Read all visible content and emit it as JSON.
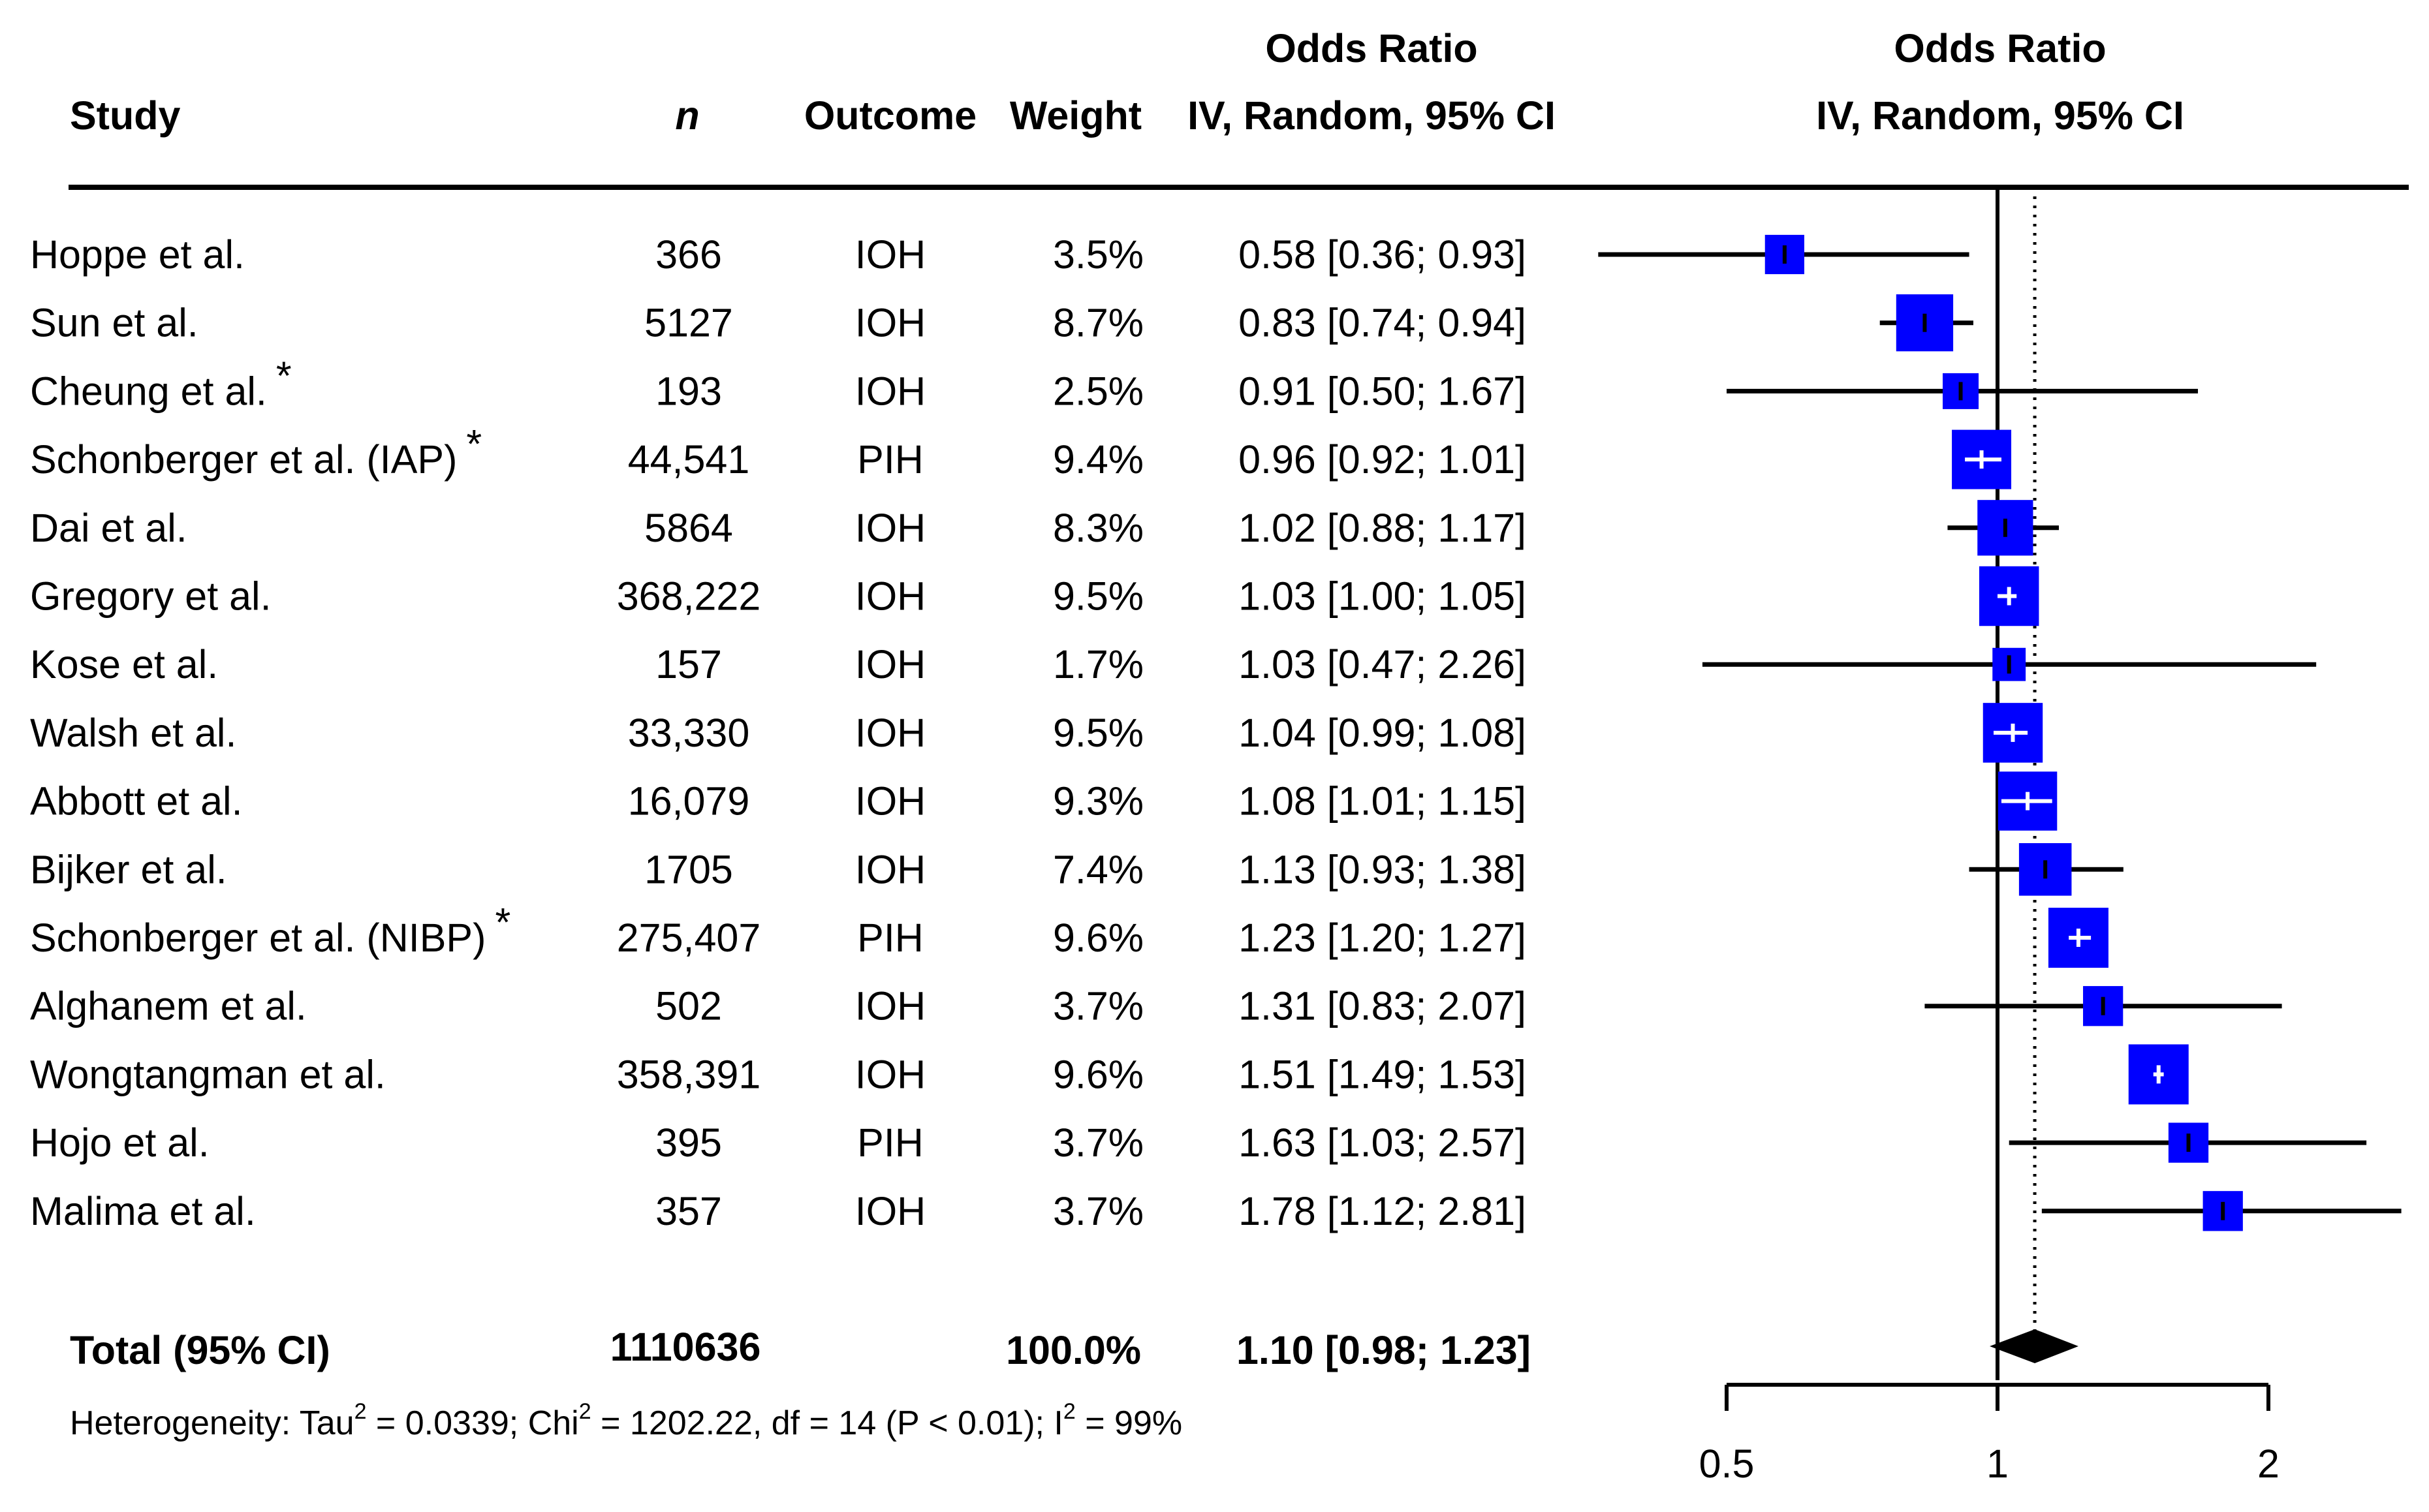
{
  "chart_data": {
    "type": "forest",
    "columns": {
      "study": "Study",
      "n": "n",
      "outcome": "Outcome",
      "weight": "Weight",
      "or_header_line1": "Odds Ratio",
      "or_header_line2": "IV, Random, 95% CI",
      "plot_header_line1": "Odds Ratio",
      "plot_header_line2": "IV, Random, 95% CI"
    },
    "studies": [
      {
        "study": "Hoppe et al.",
        "star": "",
        "n": "366",
        "outcome": "IOH",
        "weight": "3.5%",
        "weight_value": 3.5,
        "ci_text": "0.58 [0.36; 0.93]",
        "or": 0.58,
        "lower": 0.36,
        "upper": 0.93
      },
      {
        "study": "Sun et al.",
        "star": "",
        "n": "5127",
        "outcome": "IOH",
        "weight": "8.7%",
        "weight_value": 8.7,
        "ci_text": "0.83 [0.74; 0.94]",
        "or": 0.83,
        "lower": 0.74,
        "upper": 0.94
      },
      {
        "study": "Cheung et al.",
        "star": "*",
        "n": "193",
        "outcome": "IOH",
        "weight": "2.5%",
        "weight_value": 2.5,
        "ci_text": "0.91 [0.50; 1.67]",
        "or": 0.91,
        "lower": 0.5,
        "upper": 1.67
      },
      {
        "study": "Schonberger et al. (IAP)",
        "star": "*",
        "n": "44,541",
        "outcome": "PIH",
        "weight": "9.4%",
        "weight_value": 9.4,
        "ci_text": "0.96 [0.92; 1.01]",
        "or": 0.96,
        "lower": 0.92,
        "upper": 1.01
      },
      {
        "study": "Dai et al.",
        "star": "",
        "n": "5864",
        "outcome": "IOH",
        "weight": "8.3%",
        "weight_value": 8.3,
        "ci_text": "1.02 [0.88; 1.17]",
        "or": 1.02,
        "lower": 0.88,
        "upper": 1.17
      },
      {
        "study": "Gregory et al.",
        "star": "",
        "n": "368,222",
        "outcome": "IOH",
        "weight": "9.5%",
        "weight_value": 9.5,
        "ci_text": "1.03 [1.00; 1.05]",
        "or": 1.03,
        "lower": 1.0,
        "upper": 1.05
      },
      {
        "study": "Kose et al.",
        "star": "",
        "n": "157",
        "outcome": "IOH",
        "weight": "1.7%",
        "weight_value": 1.7,
        "ci_text": "1.03 [0.47; 2.26]",
        "or": 1.03,
        "lower": 0.47,
        "upper": 2.26
      },
      {
        "study": "Walsh et al.",
        "star": "",
        "n": "33,330",
        "outcome": "IOH",
        "weight": "9.5%",
        "weight_value": 9.5,
        "ci_text": "1.04 [0.99; 1.08]",
        "or": 1.04,
        "lower": 0.99,
        "upper": 1.08
      },
      {
        "study": "Abbott et al.",
        "star": "",
        "n": "16,079",
        "outcome": "IOH",
        "weight": "9.3%",
        "weight_value": 9.3,
        "ci_text": "1.08 [1.01; 1.15]",
        "or": 1.08,
        "lower": 1.01,
        "upper": 1.15
      },
      {
        "study": "Bijker et al.",
        "star": "",
        "n": "1705",
        "outcome": "IOH",
        "weight": "7.4%",
        "weight_value": 7.4,
        "ci_text": "1.13 [0.93; 1.38]",
        "or": 1.13,
        "lower": 0.93,
        "upper": 1.38
      },
      {
        "study": "Schonberger et al. (NIBP)",
        "star": "*",
        "n": "275,407",
        "outcome": "PIH",
        "weight": "9.6%",
        "weight_value": 9.6,
        "ci_text": "1.23 [1.20; 1.27]",
        "or": 1.23,
        "lower": 1.2,
        "upper": 1.27
      },
      {
        "study": "Alghanem et al.",
        "star": "",
        "n": "502",
        "outcome": "IOH",
        "weight": "3.7%",
        "weight_value": 3.7,
        "ci_text": "1.31 [0.83; 2.07]",
        "or": 1.31,
        "lower": 0.83,
        "upper": 2.07
      },
      {
        "study": "Wongtangman et al.",
        "star": "",
        "n": "358,391",
        "outcome": "IOH",
        "weight": "9.6%",
        "weight_value": 9.6,
        "ci_text": "1.51 [1.49; 1.53]",
        "or": 1.51,
        "lower": 1.49,
        "upper": 1.53
      },
      {
        "study": "Hojo et al.",
        "star": "",
        "n": "395",
        "outcome": "PIH",
        "weight": "3.7%",
        "weight_value": 3.7,
        "ci_text": "1.63 [1.03; 2.57]",
        "or": 1.63,
        "lower": 1.03,
        "upper": 2.57
      },
      {
        "study": "Malima et al.",
        "star": "",
        "n": "357",
        "outcome": "IOH",
        "weight": "3.7%",
        "weight_value": 3.7,
        "ci_text": "1.78 [1.12; 2.81]",
        "or": 1.78,
        "lower": 1.12,
        "upper": 2.81
      }
    ],
    "total": {
      "label": "Total (95% CI)",
      "n": "1110636",
      "weight": "100.0%",
      "ci_text": "1.10 [0.98; 1.23]",
      "or": 1.1,
      "lower": 0.98,
      "upper": 1.23
    },
    "heterogeneity": {
      "prefix": "Heterogeneity: Tau",
      "tau2": " = 0.0339; Chi",
      "chi2": " = 1202.22, df = 14 (P < 0.01); I",
      "i2": " = 99%",
      "superscript": "2"
    },
    "x_axis": {
      "scale": "log",
      "range": [
        0.5,
        2
      ],
      "ticks": [
        0.5,
        1,
        2
      ],
      "tick_labels": [
        "0.5",
        "1",
        "2"
      ]
    },
    "reference_line": 1,
    "pooled_line": 1.1,
    "colors": {
      "square": "#0000ff",
      "line": "#000000",
      "diamond": "#000000"
    }
  }
}
